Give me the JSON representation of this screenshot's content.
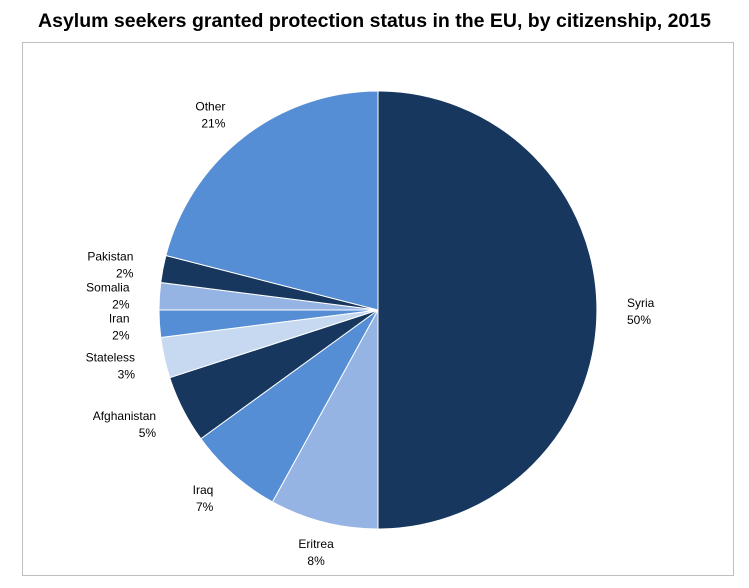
{
  "chart_data": {
    "type": "pie",
    "title": "Asylum seekers granted protection status in the EU, by citizenship, 2015",
    "slices": [
      {
        "name": "Syria",
        "value": 50,
        "label": "50%",
        "color": "#17375e"
      },
      {
        "name": "Eritrea",
        "value": 8,
        "label": "8%",
        "color": "#95b3e3"
      },
      {
        "name": "Iraq",
        "value": 7,
        "label": "7%",
        "color": "#558ed5"
      },
      {
        "name": "Afghanistan",
        "value": 5,
        "label": "5%",
        "color": "#17375e"
      },
      {
        "name": "Stateless",
        "value": 3,
        "label": "3%",
        "color": "#c6d9f1"
      },
      {
        "name": "Iran",
        "value": 2,
        "label": "2%",
        "color": "#558ed5"
      },
      {
        "name": "Somalia",
        "value": 2,
        "label": "2%",
        "color": "#95b3e3"
      },
      {
        "name": "Pakistan",
        "value": 2,
        "label": "2%",
        "color": "#17375e"
      },
      {
        "name": "Other",
        "value": 21,
        "label": "21%",
        "color": "#558ed5"
      }
    ],
    "start": "12 o'clock",
    "direction": "clockwise"
  }
}
